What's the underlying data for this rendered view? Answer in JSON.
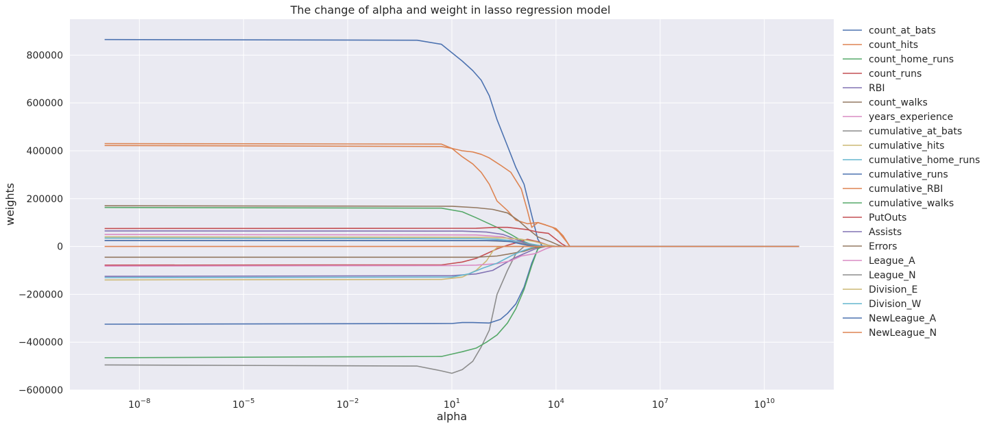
{
  "chart_data": {
    "type": "line",
    "title": "The change of alpha and weight in lasso regression model",
    "xlabel": "alpha",
    "ylabel": "weights",
    "xscale": "log",
    "xlim": [
      1e-10,
      1000000000000.0
    ],
    "ylim": [
      -600000,
      950000
    ],
    "x_ticks": [
      1e-08,
      1e-05,
      0.01,
      10.0,
      10000.0,
      10000000.0,
      10000000000.0
    ],
    "x_tick_labels": [
      {
        "base": "10",
        "exp": "−8"
      },
      {
        "base": "10",
        "exp": "−5"
      },
      {
        "base": "10",
        "exp": "−2"
      },
      {
        "base": "10",
        "exp": "1"
      },
      {
        "base": "10",
        "exp": "4"
      },
      {
        "base": "10",
        "exp": "7"
      },
      {
        "base": "10",
        "exp": "10"
      }
    ],
    "y_ticks": [
      -600000,
      -400000,
      -200000,
      0,
      200000,
      400000,
      600000,
      800000
    ],
    "y_tick_labels": [
      "−600000",
      "−400000",
      "−200000",
      "0",
      "200000",
      "400000",
      "600000",
      "800000"
    ],
    "grid": true,
    "legend_position": "outside-right",
    "x_range": [
      1e-09,
      100000000000.0
    ],
    "series": [
      {
        "name": "count_at_bats",
        "color": "#4c72b0",
        "points": [
          [
            1e-09,
            865000
          ],
          [
            1,
            862000
          ],
          [
            5,
            845000
          ],
          [
            10,
            810000
          ],
          [
            20,
            775000
          ],
          [
            40,
            735000
          ],
          [
            70,
            695000
          ],
          [
            120,
            630000
          ],
          [
            200,
            530000
          ],
          [
            400,
            420000
          ],
          [
            700,
            330000
          ],
          [
            1200,
            260000
          ],
          [
            2000,
            130000
          ],
          [
            3000,
            30000
          ],
          [
            4000,
            2000
          ],
          [
            6000,
            0
          ],
          [
            100000000000.0,
            0
          ]
        ]
      },
      {
        "name": "count_hits",
        "color": "#dd8452",
        "points": [
          [
            1e-09,
            430000
          ],
          [
            5,
            428000
          ],
          [
            10,
            410000
          ],
          [
            20,
            375000
          ],
          [
            40,
            345000
          ],
          [
            70,
            310000
          ],
          [
            120,
            260000
          ],
          [
            200,
            190000
          ],
          [
            400,
            150000
          ],
          [
            700,
            110000
          ],
          [
            1500,
            95000
          ],
          [
            3000,
            100000
          ],
          [
            5000,
            90000
          ],
          [
            10000,
            75000
          ],
          [
            16000,
            45000
          ],
          [
            25000,
            0
          ],
          [
            100000000000.0,
            0
          ]
        ]
      },
      {
        "name": "count_home_runs",
        "color": "#55a868",
        "points": [
          [
            1e-09,
            163000
          ],
          [
            5,
            160000
          ],
          [
            20,
            145000
          ],
          [
            50,
            120000
          ],
          [
            100,
            100000
          ],
          [
            200,
            80000
          ],
          [
            500,
            50000
          ],
          [
            1000,
            25000
          ],
          [
            2000,
            8000
          ],
          [
            4000,
            2000
          ],
          [
            7000,
            0
          ],
          [
            100000000000.0,
            0
          ]
        ]
      },
      {
        "name": "count_runs",
        "color": "#c44e52",
        "points": [
          [
            1e-09,
            -78000
          ],
          [
            5,
            -77000
          ],
          [
            20,
            -65000
          ],
          [
            50,
            -50000
          ],
          [
            100,
            -30000
          ],
          [
            200,
            -10000
          ],
          [
            400,
            5000
          ],
          [
            700,
            15000
          ],
          [
            1500,
            30000
          ],
          [
            3000,
            20000
          ],
          [
            6000,
            5000
          ],
          [
            10000,
            0
          ],
          [
            100000000000.0,
            0
          ]
        ]
      },
      {
        "name": "RBI",
        "color": "#8172b3",
        "points": [
          [
            1e-09,
            -125000
          ],
          [
            10,
            -122000
          ],
          [
            50,
            -115000
          ],
          [
            150,
            -100000
          ],
          [
            300,
            -75000
          ],
          [
            600,
            -50000
          ],
          [
            1200,
            -30000
          ],
          [
            2500,
            -10000
          ],
          [
            5000,
            0
          ],
          [
            100000000000.0,
            0
          ]
        ]
      },
      {
        "name": "count_walks",
        "color": "#937860",
        "points": [
          [
            1e-09,
            170000
          ],
          [
            10,
            168000
          ],
          [
            50,
            162000
          ],
          [
            150,
            155000
          ],
          [
            400,
            140000
          ],
          [
            800,
            110000
          ],
          [
            1500,
            75000
          ],
          [
            3000,
            40000
          ],
          [
            7000,
            20000
          ],
          [
            12000,
            5000
          ],
          [
            16000,
            0
          ],
          [
            100000000000.0,
            0
          ]
        ]
      },
      {
        "name": "years_experience",
        "color": "#da8bc3",
        "points": [
          [
            1e-09,
            50000
          ],
          [
            50,
            48000
          ],
          [
            300,
            40000
          ],
          [
            800,
            20000
          ],
          [
            1500,
            5000
          ],
          [
            2500,
            0
          ],
          [
            100000000000.0,
            0
          ]
        ]
      },
      {
        "name": "cumulative_at_bats",
        "color": "#8c8c8c",
        "points": [
          [
            1e-09,
            -495000
          ],
          [
            1,
            -500000
          ],
          [
            5,
            -520000
          ],
          [
            10,
            -530000
          ],
          [
            20,
            -515000
          ],
          [
            40,
            -480000
          ],
          [
            70,
            -420000
          ],
          [
            120,
            -350000
          ],
          [
            200,
            -200000
          ],
          [
            400,
            -100000
          ],
          [
            700,
            -30000
          ],
          [
            1200,
            0
          ],
          [
            100000000000.0,
            0
          ]
        ]
      },
      {
        "name": "cumulative_hits",
        "color": "#ccb974",
        "points": [
          [
            1e-09,
            -140000
          ],
          [
            5,
            -138000
          ],
          [
            20,
            -128000
          ],
          [
            50,
            -100000
          ],
          [
            100,
            -60000
          ],
          [
            150,
            -20000
          ],
          [
            200,
            -5000
          ],
          [
            300,
            0
          ],
          [
            100000000000.0,
            0
          ]
        ]
      },
      {
        "name": "cumulative_home_runs",
        "color": "#64b5cd",
        "points": [
          [
            1e-09,
            35000
          ],
          [
            50,
            33000
          ],
          [
            200,
            30000
          ],
          [
            500,
            25000
          ],
          [
            1000,
            20000
          ],
          [
            2000,
            10000
          ],
          [
            4000,
            2000
          ],
          [
            6000,
            0
          ],
          [
            100000000000.0,
            0
          ]
        ]
      },
      {
        "name": "cumulative_runs",
        "color": "#4c72b0",
        "points": [
          [
            1e-09,
            -325000
          ],
          [
            10,
            -322000
          ],
          [
            20,
            -318000
          ],
          [
            40,
            -318000
          ],
          [
            120,
            -320000
          ],
          [
            250,
            -305000
          ],
          [
            400,
            -280000
          ],
          [
            700,
            -240000
          ],
          [
            1200,
            -170000
          ],
          [
            2000,
            -70000
          ],
          [
            3000,
            -10000
          ],
          [
            4000,
            0
          ],
          [
            100000000000.0,
            0
          ]
        ]
      },
      {
        "name": "cumulative_RBI",
        "color": "#dd8452",
        "points": [
          [
            1e-09,
            422000
          ],
          [
            5,
            418000
          ],
          [
            10,
            410000
          ],
          [
            20,
            400000
          ],
          [
            40,
            395000
          ],
          [
            70,
            385000
          ],
          [
            120,
            370000
          ],
          [
            250,
            340000
          ],
          [
            500,
            310000
          ],
          [
            1000,
            240000
          ],
          [
            1500,
            150000
          ],
          [
            2000,
            80000
          ],
          [
            3000,
            100000
          ],
          [
            5000,
            90000
          ],
          [
            8000,
            80000
          ],
          [
            12000,
            60000
          ],
          [
            20000,
            20000
          ],
          [
            25000,
            0
          ],
          [
            100000000000.0,
            0
          ]
        ]
      },
      {
        "name": "cumulative_walks",
        "color": "#55a868",
        "points": [
          [
            1e-09,
            -465000
          ],
          [
            5,
            -460000
          ],
          [
            10,
            -450000
          ],
          [
            20,
            -440000
          ],
          [
            50,
            -425000
          ],
          [
            100,
            -400000
          ],
          [
            200,
            -370000
          ],
          [
            400,
            -320000
          ],
          [
            700,
            -260000
          ],
          [
            1200,
            -180000
          ],
          [
            2000,
            -80000
          ],
          [
            3000,
            -10000
          ],
          [
            4000,
            0
          ],
          [
            100000000000.0,
            0
          ]
        ]
      },
      {
        "name": "PutOuts",
        "color": "#c44e52",
        "points": [
          [
            1e-09,
            75000
          ],
          [
            50,
            76000
          ],
          [
            200,
            80000
          ],
          [
            400,
            80000
          ],
          [
            800,
            75000
          ],
          [
            1500,
            70000
          ],
          [
            3000,
            60000
          ],
          [
            6000,
            55000
          ],
          [
            10000,
            30000
          ],
          [
            15000,
            10000
          ],
          [
            20000,
            0
          ],
          [
            100000000000.0,
            0
          ]
        ]
      },
      {
        "name": "Assists",
        "color": "#8172b3",
        "points": [
          [
            1e-09,
            65000
          ],
          [
            20,
            64000
          ],
          [
            100,
            60000
          ],
          [
            300,
            50000
          ],
          [
            700,
            30000
          ],
          [
            1500,
            10000
          ],
          [
            3000,
            0
          ],
          [
            100000000000.0,
            0
          ]
        ]
      },
      {
        "name": "Errors",
        "color": "#937860",
        "points": [
          [
            1e-09,
            -45000
          ],
          [
            50,
            -45000
          ],
          [
            200,
            -40000
          ],
          [
            500,
            -30000
          ],
          [
            1200,
            -20000
          ],
          [
            2500,
            -5000
          ],
          [
            5000,
            0
          ],
          [
            100000000000.0,
            0
          ]
        ]
      },
      {
        "name": "League_A",
        "color": "#da8bc3",
        "points": [
          [
            1e-09,
            -82000
          ],
          [
            10,
            -80000
          ],
          [
            50,
            -78000
          ],
          [
            200,
            -72000
          ],
          [
            500,
            -60000
          ],
          [
            1000,
            -40000
          ],
          [
            2500,
            -30000
          ],
          [
            5000,
            -10000
          ],
          [
            8000,
            0
          ],
          [
            100000000000.0,
            0
          ]
        ]
      },
      {
        "name": "League_N",
        "color": "#8c8c8c",
        "points": [
          [
            1e-09,
            25000
          ],
          [
            100,
            24000
          ],
          [
            500,
            20000
          ],
          [
            1500,
            10000
          ],
          [
            3000,
            0
          ],
          [
            100000000000.0,
            0
          ]
        ]
      },
      {
        "name": "Division_E",
        "color": "#ccb974",
        "points": [
          [
            1e-09,
            40000
          ],
          [
            100,
            38000
          ],
          [
            400,
            35000
          ],
          [
            1000,
            30000
          ],
          [
            2500,
            20000
          ],
          [
            6000,
            5000
          ],
          [
            10000,
            0
          ],
          [
            100000000000.0,
            0
          ]
        ]
      },
      {
        "name": "Division_W",
        "color": "#64b5cd",
        "points": [
          [
            1e-09,
            -130000
          ],
          [
            10,
            -128000
          ],
          [
            30,
            -115000
          ],
          [
            80,
            -90000
          ],
          [
            200,
            -70000
          ],
          [
            500,
            -40000
          ],
          [
            1000,
            -20000
          ],
          [
            2500,
            0
          ],
          [
            100000000000.0,
            0
          ]
        ]
      },
      {
        "name": "NewLeague_A",
        "color": "#4c72b0",
        "points": [
          [
            1e-09,
            25000
          ],
          [
            200,
            25000
          ],
          [
            500,
            20000
          ],
          [
            1000,
            10000
          ],
          [
            2000,
            2000
          ],
          [
            3000,
            0
          ],
          [
            100000000000.0,
            0
          ]
        ]
      },
      {
        "name": "NewLeague_N",
        "color": "#dd8452",
        "points": [
          [
            1e-09,
            0
          ],
          [
            100000000000.0,
            0
          ]
        ]
      }
    ]
  }
}
